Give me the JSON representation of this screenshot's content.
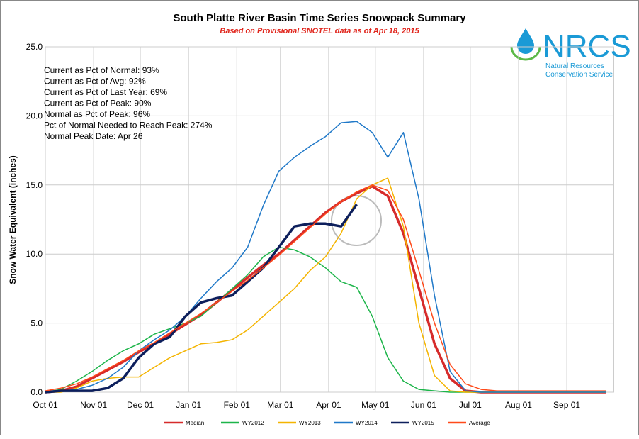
{
  "chart_data": {
    "type": "line",
    "title": "South Platte River Basin Time Series Snowpack Summary",
    "subtitle": "Based on Provisional SNOTEL data as of Apr 18, 2015",
    "y_label": "Snow Water Equivalent (inches)",
    "annotations": [
      "Current  as Pct of Normal: 93%",
      "Current  as Pct of Avg: 92%",
      "Current  as Pct of Last Year: 69%",
      "Current  as Pct of Peak: 90%",
      "Normal  as Pct of Peak: 96%",
      "Pct of Normal Needed  to Reach Peak: 274%",
      "Normal Peak Date: Apr 26"
    ],
    "logo": {
      "mark": "NRCS",
      "line1": "Natural Resources",
      "line2": "Conservation Service"
    },
    "x": [
      0,
      10,
      20,
      30,
      40,
      50,
      60,
      70,
      80,
      90,
      100,
      110,
      120,
      130,
      140,
      150,
      160,
      170,
      180,
      190,
      200,
      210,
      220,
      230,
      240,
      250,
      260,
      270,
      280,
      290,
      300,
      310,
      320,
      330,
      340,
      350,
      360
    ],
    "xlim": [
      0,
      365
    ],
    "xticks": [
      {
        "value": 0,
        "label": "Oct 01"
      },
      {
        "value": 31,
        "label": "Nov 01"
      },
      {
        "value": 61,
        "label": "Dec 01"
      },
      {
        "value": 92,
        "label": "Jan 01"
      },
      {
        "value": 123,
        "label": "Feb 01"
      },
      {
        "value": 151,
        "label": "Mar 01"
      },
      {
        "value": 182,
        "label": "Apr 01"
      },
      {
        "value": 212,
        "label": "May 01"
      },
      {
        "value": 243,
        "label": "Jun 01"
      },
      {
        "value": 273,
        "label": "Jul 01"
      },
      {
        "value": 304,
        "label": "Aug 01"
      },
      {
        "value": 335,
        "label": "Sep 01"
      }
    ],
    "ylim": [
      0,
      25
    ],
    "yticks": [
      {
        "value": 0,
        "label": "0.0"
      },
      {
        "value": 5,
        "label": "5.0"
      },
      {
        "value": 10,
        "label": "10.0"
      },
      {
        "value": 15,
        "label": "15.0"
      },
      {
        "value": 20,
        "label": "20.0"
      },
      {
        "value": 25,
        "label": "25.0"
      }
    ],
    "grid": true,
    "series": [
      {
        "name": "Median",
        "color": "#d62b2b",
        "width": 3.5,
        "values": [
          0,
          0.1,
          0.4,
          1.0,
          1.6,
          2.2,
          2.9,
          3.5,
          4.2,
          4.9,
          5.6,
          6.5,
          7.4,
          8.3,
          9.2,
          10.0,
          11.0,
          12.0,
          13.0,
          13.8,
          14.4,
          14.9,
          14.2,
          11.5,
          7.5,
          3.5,
          1.0,
          0.1,
          0,
          0,
          0,
          0,
          0,
          0,
          0,
          0,
          0
        ]
      },
      {
        "name": "WY2012",
        "color": "#1db54a",
        "width": 1.5,
        "values": [
          0,
          0.2,
          0.8,
          1.5,
          2.3,
          3.0,
          3.5,
          4.2,
          4.6,
          5.0,
          5.5,
          6.5,
          7.5,
          8.5,
          9.8,
          10.5,
          10.3,
          9.8,
          9.0,
          8.0,
          7.6,
          5.5,
          2.5,
          0.8,
          0.2,
          0.1,
          0,
          0,
          0,
          0,
          0,
          0,
          0,
          0,
          0,
          0,
          0
        ]
      },
      {
        "name": "WY2013",
        "color": "#f4b400",
        "width": 1.5,
        "values": [
          0,
          0,
          0.3,
          0.8,
          1.0,
          1.1,
          1.1,
          1.8,
          2.5,
          3.0,
          3.5,
          3.6,
          3.8,
          4.5,
          5.5,
          6.5,
          7.5,
          8.8,
          9.8,
          11.5,
          14.0,
          15.0,
          15.5,
          12.0,
          5.0,
          1.2,
          0.1,
          0,
          0,
          0,
          0,
          0,
          0,
          0,
          0,
          0,
          0
        ]
      },
      {
        "name": "WY2014",
        "color": "#1f78c8",
        "width": 1.5,
        "values": [
          0.1,
          0.1,
          0.2,
          0.5,
          1.0,
          1.8,
          3.0,
          3.8,
          4.5,
          5.5,
          6.8,
          8.0,
          9.0,
          10.5,
          13.5,
          16.0,
          17.0,
          17.8,
          18.5,
          19.5,
          19.6,
          18.8,
          17.0,
          18.8,
          14.0,
          7.0,
          1.5,
          0.1,
          0,
          0,
          0,
          0,
          0,
          0,
          0,
          0,
          0
        ]
      },
      {
        "name": "WY2015",
        "color": "#0d1f5c",
        "width": 3.5,
        "values": [
          0,
          0.1,
          0.1,
          0.1,
          0.3,
          1.0,
          2.5,
          3.5,
          4.0,
          5.5,
          6.5,
          6.8,
          7.0,
          8.0,
          9.0,
          10.5,
          12.0,
          12.2,
          12.2,
          12.0,
          13.6,
          null,
          null,
          null,
          null,
          null,
          null,
          null,
          null,
          null,
          null,
          null,
          null,
          null,
          null,
          null,
          null
        ]
      },
      {
        "name": "Average",
        "color": "#ff4a1a",
        "width": 1.5,
        "values": [
          0.1,
          0.3,
          0.6,
          1.1,
          1.7,
          2.3,
          3.0,
          3.6,
          4.3,
          5.0,
          5.7,
          6.5,
          7.3,
          8.1,
          9.0,
          9.9,
          10.9,
          11.9,
          12.9,
          13.8,
          14.5,
          15.0,
          14.6,
          12.5,
          8.8,
          5.0,
          2.0,
          0.6,
          0.2,
          0.1,
          0.1,
          0.1,
          0.1,
          0.1,
          0.1,
          0.1,
          0.1
        ]
      }
    ]
  }
}
